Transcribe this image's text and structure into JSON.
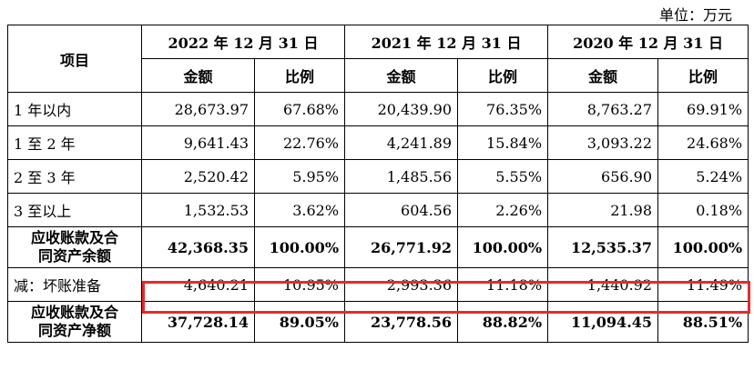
{
  "unit_label": "单位：万元",
  "header": {
    "item_label": "项目",
    "periods": [
      "2022 年 12 月 31 日",
      "2021 年 12 月 31 日",
      "2020 年 12 月 31 日"
    ],
    "amount_label": "金额",
    "ratio_label": "比例"
  },
  "rows": [
    {
      "label": "1 年以内",
      "values": [
        "28,673.97",
        "67.68%",
        "20,439.90",
        "76.35%",
        "8,763.27",
        "69.91%"
      ]
    },
    {
      "label": "1 至 2 年",
      "values": [
        "9,641.43",
        "22.76%",
        "4,241.89",
        "15.84%",
        "3,093.22",
        "24.68%"
      ]
    },
    {
      "label": "2 至 3 年",
      "values": [
        "2,520.42",
        "5.95%",
        "1,485.56",
        "5.55%",
        "656.90",
        "5.24%"
      ]
    },
    {
      "label": "3 至以上",
      "values": [
        "1,532.53",
        "3.62%",
        "604.56",
        "2.26%",
        "21.98",
        "0.18%"
      ]
    },
    {
      "label_line1": "应收账款及合",
      "label_line2": "同资产余额",
      "values": [
        "42,368.35",
        "100.00%",
        "26,771.92",
        "100.00%",
        "12,535.37",
        "100.00%"
      ]
    },
    {
      "label": "减：坏账准备",
      "values": [
        "4,640.21",
        "10.95%",
        "2,993.36",
        "11.18%",
        "1,440.92",
        "11.49%"
      ]
    },
    {
      "label_line1": "应收账款及合",
      "label_line2": "同资产净额",
      "values": [
        "37,728.14",
        "89.05%",
        "23,778.56",
        "88.82%",
        "11,094.45",
        "88.51%"
      ]
    }
  ],
  "highlight_color": "#e52b2b"
}
